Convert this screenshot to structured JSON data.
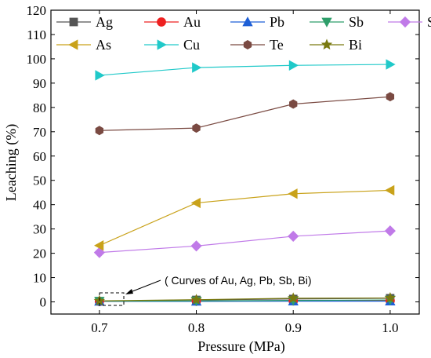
{
  "chart_data": {
    "type": "line",
    "xlabel": "Pressure (MPa)",
    "ylabel": "Leaching (%)",
    "xlim": [
      0.65,
      1.03
    ],
    "ylim": [
      -5,
      120
    ],
    "x": [
      0.7,
      0.8,
      0.9,
      1.0
    ],
    "x_tick_labels": [
      "0.7",
      "0.8",
      "0.9",
      "1.0"
    ],
    "y_ticks": [
      0,
      10,
      20,
      30,
      40,
      50,
      60,
      70,
      80,
      90,
      100,
      110,
      120
    ],
    "y_tick_labels": [
      "0",
      "10",
      "20",
      "30",
      "40",
      "50",
      "60",
      "70",
      "80",
      "90",
      "100",
      "110",
      "120"
    ],
    "grid": false,
    "legend_placement": "top",
    "annotation": "( Curves of Au, Ag, Pb, Sb, Bi)",
    "series": [
      {
        "name": "Ag",
        "color": "#555555",
        "marker": "square",
        "values": [
          0.3,
          0.8,
          1.2,
          1.5
        ]
      },
      {
        "name": "Au",
        "color": "#ee2020",
        "marker": "circle",
        "values": [
          0.2,
          0.3,
          0.4,
          0.5
        ]
      },
      {
        "name": "Pb",
        "color": "#1e5fd6",
        "marker": "triangle-up",
        "values": [
          0.2,
          0.2,
          0.3,
          0.3
        ]
      },
      {
        "name": "Sb",
        "color": "#2e9e6a",
        "marker": "triangle-down",
        "values": [
          0.3,
          0.4,
          0.6,
          0.8
        ]
      },
      {
        "name": "Se",
        "color": "#c07ae8",
        "marker": "diamond",
        "values": [
          20.3,
          23.0,
          27.0,
          29.2
        ]
      },
      {
        "name": "As",
        "color": "#c9a21a",
        "marker": "triangle-left",
        "values": [
          23.2,
          40.7,
          44.5,
          45.9
        ]
      },
      {
        "name": "Cu",
        "color": "#20c9c9",
        "marker": "triangle-right",
        "values": [
          93.2,
          96.4,
          97.3,
          97.7
        ]
      },
      {
        "name": "Te",
        "color": "#7a4a42",
        "marker": "hexagon",
        "values": [
          70.5,
          71.5,
          81.4,
          84.4
        ]
      },
      {
        "name": "Bi",
        "color": "#7a7a10",
        "marker": "star",
        "values": [
          0.4,
          0.9,
          1.5,
          1.6
        ]
      }
    ]
  }
}
